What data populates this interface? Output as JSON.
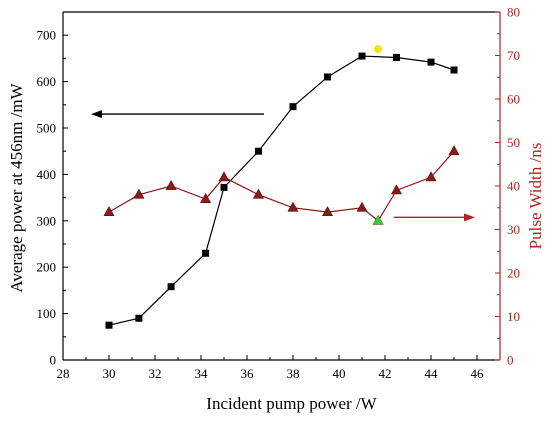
{
  "chart_data": {
    "type": "line",
    "title": "",
    "xlabel": "Incident pump power /W",
    "ylabel": "Average power at 456nm /mW",
    "y2label": "Pulse Width /ns",
    "xlim": [
      28,
      47
    ],
    "ylim": [
      0,
      750
    ],
    "y2lim": [
      0,
      80
    ],
    "x_ticks": [
      "28",
      "30",
      "32",
      "34",
      "36",
      "38",
      "40",
      "42",
      "44",
      "46"
    ],
    "y_ticks": [
      "0",
      "100",
      "200",
      "300",
      "400",
      "500",
      "600",
      "700"
    ],
    "y2_ticks": [
      "0",
      "10",
      "20",
      "30",
      "40",
      "50",
      "60",
      "70",
      "80"
    ],
    "series": [
      {
        "axis": "left",
        "marker": "square",
        "color": "#000000",
        "x": [
          30,
          31.3,
          32.7,
          34.2,
          35,
          36.5,
          38,
          39.5,
          41,
          42.5,
          44,
          45
        ],
        "y": [
          75,
          90,
          158,
          230,
          372,
          450,
          546,
          610,
          655,
          652,
          642,
          625
        ]
      },
      {
        "axis": "right",
        "marker": "triangle",
        "color": "#8b1a1a",
        "x": [
          30,
          31.3,
          32.7,
          34.2,
          35,
          36.5,
          38,
          39.5,
          41,
          41.7,
          42.5,
          44,
          45
        ],
        "y": [
          34,
          38,
          40,
          37,
          42,
          38,
          35,
          34,
          35,
          32,
          39,
          42,
          48
        ]
      }
    ],
    "highlights": [
      {
        "axis": "left",
        "x": 41.7,
        "y": 670,
        "color": "#f5e400"
      },
      {
        "axis": "right",
        "x": 41.7,
        "y": 32,
        "color": "#33cc33"
      }
    ],
    "grid": false,
    "legend": "none",
    "arrows": [
      {
        "points_to": "left",
        "color": "#000000"
      },
      {
        "points_to": "right",
        "color": "#b22222"
      }
    ]
  }
}
